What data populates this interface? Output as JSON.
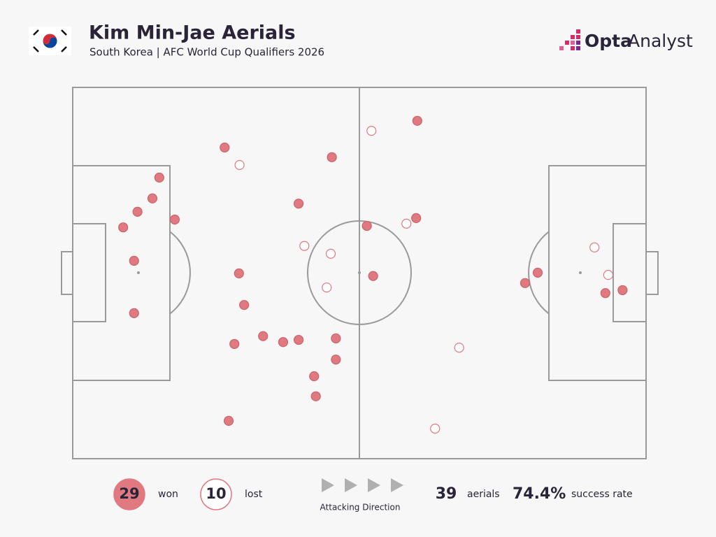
{
  "chart_data": {
    "type": "scatter",
    "title": "Kim Min-Jae Aerials",
    "subtitle": "South Korea | AFC World Cup Qualifiers 2026",
    "brand": [
      "Opta",
      "Analyst"
    ],
    "xlim": [
      0,
      100
    ],
    "ylim": [
      0,
      100
    ],
    "series": [
      {
        "name": "won",
        "count": 29,
        "color": "#e07a80",
        "x": [
          60.1,
          26.5,
          45.2,
          15.1,
          13.9,
          11.3,
          17.8,
          8.8,
          39.4,
          59.9,
          51.3,
          10.7,
          29.0,
          52.4,
          81.1,
          78.9,
          92.9,
          95.9,
          10.7,
          29.9,
          33.2,
          36.7,
          39.4,
          45.9,
          28.2,
          45.9,
          42.1,
          42.4,
          27.2
        ],
        "values": [
          91.0,
          83.8,
          81.2,
          75.7,
          70.1,
          66.5,
          64.4,
          62.3,
          68.7,
          64.8,
          62.7,
          53.3,
          49.9,
          49.2,
          50.1,
          47.3,
          44.6,
          45.4,
          39.2,
          41.4,
          33.0,
          31.4,
          32.0,
          32.4,
          30.9,
          26.7,
          22.2,
          16.8,
          10.2
        ]
      },
      {
        "name": "lost",
        "count": 10,
        "color": "#e07a80",
        "x": [
          52.1,
          29.1,
          58.2,
          40.4,
          45.0,
          44.3,
          91.0,
          93.4,
          67.4,
          63.2
        ],
        "values": [
          88.3,
          79.1,
          63.3,
          57.3,
          55.2,
          46.1,
          56.9,
          49.5,
          29.9,
          8.1
        ]
      }
    ],
    "direction_label": "Attacking Direction",
    "stats": [
      {
        "value": "39",
        "label": "aerials"
      },
      {
        "value": "74.4%",
        "label": "success rate"
      }
    ]
  }
}
